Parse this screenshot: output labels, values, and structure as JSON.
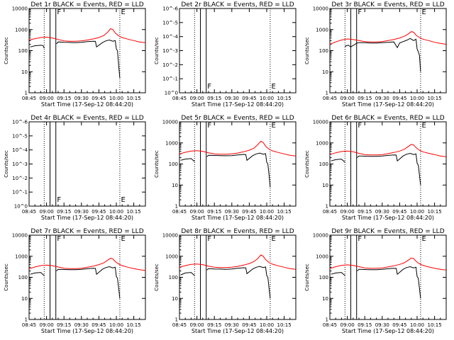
{
  "chart_data": {
    "type": "line",
    "title_template": "Det {n}r BLACK = Events, RED = LLD",
    "xlabel": "Start Time (17-Sep-12 08:44:20)",
    "ylabel": "Counts/sec",
    "x_ticks": [
      "08:45",
      "09:00",
      "09:15",
      "09:30",
      "09:45",
      "10:00",
      "10:15"
    ],
    "x_tick_minutes": [
      0,
      15,
      30,
      45,
      60,
      75,
      90
    ],
    "xlim_minutes": [
      0,
      100
    ],
    "y_scale": "log",
    "ylim": [
      1,
      10000
    ],
    "y_ticks": [
      "1",
      "10",
      "100",
      "1000",
      "10000"
    ],
    "blank_y_ticks": [
      "10^0",
      "10^-1",
      "10^-2",
      "10^-3",
      "10^-4",
      "10^-5",
      "10^-6"
    ],
    "grid": false,
    "legend": "none",
    "colors": {
      "events": "#000000",
      "lld": "#ff0000",
      "frame": "#000000"
    },
    "dotted_vlines_minutes": [
      13,
      78
    ],
    "solid_vlines_minutes": [
      18,
      23
    ],
    "marker_letters": {
      "F": 24,
      "E": 79
    },
    "panels": [
      {
        "detector": "1",
        "has_data": true,
        "series": [
          {
            "name": "BLACK = Events",
            "color": "#000000",
            "x": [
              1,
              5,
              10,
              12,
              13,
              13.5,
              23.5,
              25,
              30,
              35,
              40,
              45,
              50,
              55,
              57,
              58,
              63,
              66,
              69,
              72,
              74,
              75,
              76,
              77,
              78
            ],
            "y": [
              150,
              170,
              180,
              175,
              130,
              null,
              210,
              260,
              250,
              245,
              240,
              250,
              270,
              280,
              275,
              150,
              240,
              290,
              320,
              280,
              300,
              120,
              100,
              20,
              5
            ]
          },
          {
            "name": "RED = LLD",
            "color": "#ff0000",
            "x": [
              0,
              5,
              10,
              15,
              20,
              25,
              30,
              35,
              40,
              45,
              50,
              55,
              60,
              64,
              67,
              70,
              72,
              74,
              77,
              80,
              85,
              90,
              95,
              100
            ],
            "y": [
              320,
              370,
              420,
              440,
              400,
              340,
              290,
              280,
              280,
              290,
              320,
              360,
              420,
              520,
              700,
              1100,
              1000,
              700,
              500,
              420,
              350,
              300,
              260,
              240
            ]
          }
        ]
      },
      {
        "detector": "2",
        "has_data": false,
        "series": []
      },
      {
        "detector": "3",
        "has_data": true,
        "series": [
          {
            "name": "BLACK = Events",
            "color": "#000000",
            "x": [
              13,
              14,
              16,
              18,
              23.5,
              25,
              30,
              35,
              40,
              45,
              50,
              55,
              58,
              60,
              63,
              66,
              69,
              72,
              74,
              75,
              76,
              77,
              78
            ],
            "y": [
              150,
              170,
              180,
              150,
              230,
              240,
              240,
              230,
              230,
              240,
              250,
              260,
              140,
              230,
              270,
              310,
              380,
              300,
              350,
              120,
              90,
              60,
              10
            ]
          },
          {
            "name": "RED = LLD",
            "color": "#ff0000",
            "x": [
              0,
              5,
              10,
              15,
              20,
              25,
              30,
              35,
              40,
              45,
              50,
              55,
              60,
              64,
              67,
              70,
              72,
              74,
              77,
              80,
              85,
              90,
              95,
              100
            ],
            "y": [
              200,
              260,
              320,
              360,
              340,
              300,
              270,
              260,
              260,
              270,
              300,
              340,
              400,
              480,
              600,
              800,
              750,
              550,
              420,
              350,
              300,
              250,
              220,
              200
            ]
          }
        ]
      },
      {
        "detector": "4",
        "has_data": false,
        "series": []
      },
      {
        "detector": "5",
        "has_data": true,
        "series": [
          {
            "name": "BLACK = Events",
            "color": "#000000",
            "x": [
              1,
              5,
              10,
              13,
              13.5,
              23.5,
              25,
              30,
              35,
              40,
              45,
              50,
              55,
              57,
              58,
              63,
              66,
              69,
              72,
              74,
              75,
              76,
              77,
              78
            ],
            "y": [
              150,
              170,
              180,
              130,
              null,
              220,
              260,
              255,
              250,
              245,
              250,
              270,
              285,
              280,
              150,
              250,
              300,
              330,
              290,
              310,
              120,
              100,
              30,
              8
            ]
          },
          {
            "name": "RED = LLD",
            "color": "#ff0000",
            "x": [
              0,
              5,
              10,
              15,
              20,
              25,
              30,
              35,
              40,
              45,
              50,
              55,
              60,
              64,
              67,
              70,
              72,
              74,
              77,
              80,
              85,
              90,
              95,
              100
            ],
            "y": [
              300,
              360,
              410,
              430,
              400,
              340,
              300,
              290,
              290,
              300,
              330,
              380,
              450,
              560,
              800,
              1200,
              1050,
              700,
              500,
              420,
              350,
              300,
              260,
              240
            ]
          }
        ]
      },
      {
        "detector": "6",
        "has_data": true,
        "series": [
          {
            "name": "BLACK = Events",
            "color": "#000000",
            "x": [
              1,
              5,
              10,
              13,
              13.5,
              23.5,
              25,
              30,
              35,
              40,
              45,
              50,
              55,
              57,
              58,
              63,
              66,
              69,
              72,
              74,
              75,
              76,
              77,
              78
            ],
            "y": [
              140,
              160,
              170,
              120,
              null,
              200,
              240,
              235,
              230,
              230,
              240,
              255,
              270,
              265,
              140,
              240,
              290,
              320,
              280,
              300,
              110,
              90,
              30,
              10
            ]
          },
          {
            "name": "RED = LLD",
            "color": "#ff0000",
            "x": [
              0,
              5,
              10,
              15,
              20,
              25,
              30,
              35,
              40,
              45,
              50,
              55,
              60,
              64,
              67,
              70,
              72,
              74,
              77,
              80,
              85,
              90,
              95,
              100
            ],
            "y": [
              280,
              340,
              390,
              410,
              380,
              320,
              280,
              270,
              270,
              280,
              310,
              350,
              410,
              500,
              650,
              850,
              800,
              600,
              450,
              380,
              320,
              280,
              240,
              220
            ]
          }
        ]
      },
      {
        "detector": "7",
        "has_data": true,
        "series": [
          {
            "name": "BLACK = Events",
            "color": "#000000",
            "x": [
              1,
              5,
              10,
              13,
              13.5,
              23.5,
              25,
              30,
              35,
              40,
              45,
              50,
              55,
              57,
              58,
              63,
              66,
              69,
              72,
              74,
              75,
              76,
              77,
              78
            ],
            "y": [
              140,
              160,
              170,
              120,
              null,
              200,
              240,
              235,
              230,
              230,
              240,
              255,
              270,
              265,
              140,
              240,
              290,
              320,
              280,
              300,
              110,
              90,
              30,
              10
            ]
          },
          {
            "name": "RED = LLD",
            "color": "#ff0000",
            "x": [
              0,
              5,
              10,
              15,
              20,
              25,
              30,
              35,
              40,
              45,
              50,
              55,
              60,
              64,
              67,
              70,
              72,
              74,
              77,
              80,
              85,
              90,
              95,
              100
            ],
            "y": [
              250,
              310,
              360,
              380,
              360,
              310,
              270,
              260,
              260,
              270,
              300,
              340,
              400,
              480,
              620,
              800,
              750,
              560,
              430,
              360,
              300,
              260,
              230,
              210
            ]
          }
        ]
      },
      {
        "detector": "8",
        "has_data": true,
        "series": [
          {
            "name": "BLACK = Events",
            "color": "#000000",
            "x": [
              1,
              5,
              10,
              13,
              13.5,
              23.5,
              25,
              30,
              35,
              40,
              45,
              50,
              55,
              57,
              58,
              63,
              66,
              69,
              72,
              74,
              75,
              76,
              77,
              78
            ],
            "y": [
              130,
              160,
              170,
              120,
              null,
              220,
              260,
              250,
              245,
              240,
              250,
              270,
              285,
              280,
              150,
              250,
              300,
              330,
              290,
              310,
              120,
              100,
              30,
              10
            ]
          },
          {
            "name": "RED = LLD",
            "color": "#ff0000",
            "x": [
              0,
              5,
              10,
              15,
              20,
              25,
              30,
              35,
              40,
              45,
              50,
              55,
              60,
              64,
              67,
              70,
              72,
              74,
              77,
              80,
              85,
              90,
              95,
              100
            ],
            "y": [
              300,
              360,
              410,
              430,
              400,
              340,
              300,
              290,
              290,
              300,
              330,
              380,
              450,
              560,
              750,
              1150,
              1000,
              700,
              500,
              420,
              350,
              300,
              260,
              240
            ]
          }
        ]
      },
      {
        "detector": "9",
        "has_data": true,
        "series": [
          {
            "name": "BLACK = Events",
            "color": "#000000",
            "x": [
              1,
              5,
              10,
              13,
              13.5,
              23.5,
              25,
              30,
              35,
              40,
              45,
              50,
              55,
              57,
              58,
              63,
              66,
              69,
              72,
              74,
              75,
              76,
              77,
              78
            ],
            "y": [
              140,
              160,
              170,
              120,
              null,
              200,
              240,
              235,
              230,
              230,
              240,
              255,
              270,
              265,
              140,
              240,
              290,
              320,
              280,
              300,
              110,
              90,
              30,
              10
            ]
          },
          {
            "name": "RED = LLD",
            "color": "#ff0000",
            "x": [
              0,
              5,
              10,
              15,
              20,
              25,
              30,
              35,
              40,
              45,
              50,
              55,
              60,
              64,
              67,
              70,
              72,
              74,
              77,
              80,
              85,
              90,
              95,
              100
            ],
            "y": [
              260,
              320,
              370,
              390,
              370,
              320,
              280,
              270,
              270,
              280,
              310,
              350,
              410,
              490,
              630,
              820,
              780,
              580,
              440,
              370,
              310,
              270,
              240,
              220
            ]
          }
        ]
      }
    ]
  }
}
